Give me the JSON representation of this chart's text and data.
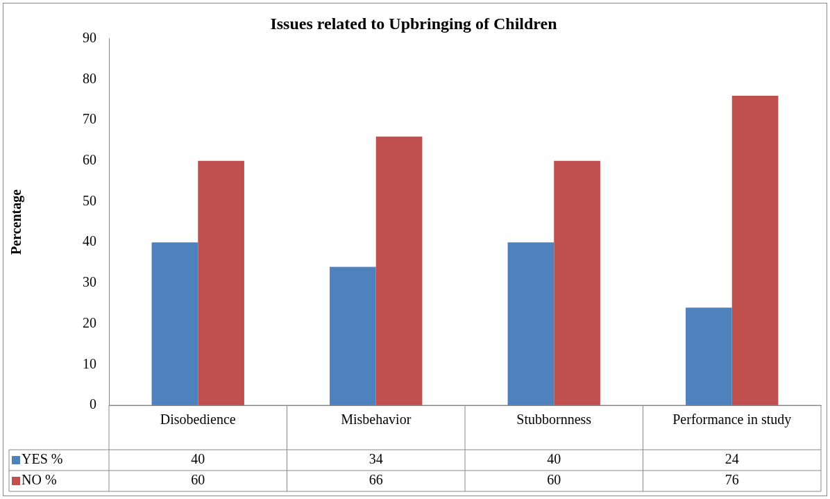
{
  "chart_data": {
    "type": "bar",
    "title": "Issues related to Upbringing of Children",
    "ylabel": "Percentage",
    "categories": [
      "Disobedience",
      "Misbehavior",
      "Stubbornness",
      "Performance in study"
    ],
    "series": [
      {
        "name": "YES %",
        "color": "#4f81bd",
        "values": [
          40,
          34,
          40,
          24
        ]
      },
      {
        "name": "NO %",
        "color": "#c0504d",
        "values": [
          60,
          66,
          60,
          76
        ]
      }
    ],
    "ylim": [
      0,
      90
    ],
    "yticks": [
      0,
      10,
      20,
      30,
      40,
      50,
      60,
      70,
      80,
      90
    ],
    "grid": false,
    "legend": "bottom left",
    "data_labels": true
  }
}
